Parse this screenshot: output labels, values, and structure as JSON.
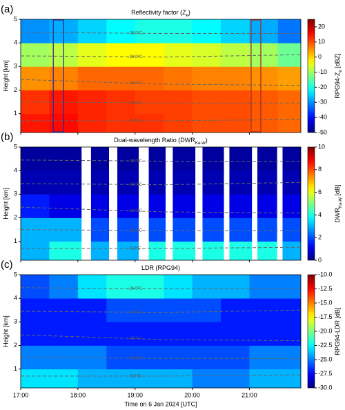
{
  "chart_data": [
    {
      "type": "heatmap",
      "panel_label": "(a)",
      "title": [
        "Reflectivity factor (Z",
        "e",
        ")"
      ],
      "ylabel": "Height [km]",
      "colorbar_label": [
        "RPG94-Z",
        "e",
        " [dBZ]"
      ],
      "colormap": "jet",
      "xlim": [
        17,
        21.9
      ],
      "ylim": [
        0.2,
        5
      ],
      "yticks": [
        1,
        2,
        3,
        4,
        5
      ],
      "zlim": [
        -50,
        25
      ],
      "zticks": [
        -50,
        -40,
        -30,
        -20,
        -10,
        0,
        10,
        20
      ],
      "x_edges": [
        17,
        17.5,
        18,
        18.5,
        19,
        19.5,
        20,
        20.5,
        21,
        21.5,
        21.9
      ],
      "y_edges": [
        0.2,
        1,
        2,
        3,
        4,
        5
      ],
      "z": [
        [
          14,
          15,
          13,
          12,
          12,
          11,
          10,
          10,
          9,
          8
        ],
        [
          12,
          14,
          13,
          12,
          11,
          11,
          10,
          10,
          9,
          8
        ],
        [
          5,
          6,
          8,
          8,
          8,
          7,
          6,
          6,
          5,
          4
        ],
        [
          -10,
          -8,
          -5,
          -3,
          -3,
          -5,
          -6,
          -8,
          -10,
          -14
        ],
        [
          -30,
          -28,
          -25,
          -22,
          -20,
          -20,
          -22,
          -25,
          -28,
          -32
        ]
      ],
      "isotherms": [
        {
          "label": "-25.0°C",
          "x": [
            17,
            19.5,
            21.9
          ],
          "y": [
            4.45,
            4.4,
            4.4
          ]
        },
        {
          "label": "-20.0°C",
          "x": [
            17,
            19.5,
            21.9
          ],
          "y": [
            3.45,
            3.4,
            3.5
          ]
        },
        {
          "label": "-15.0°C",
          "x": [
            17,
            19.5,
            21.9
          ],
          "y": [
            2.45,
            2.25,
            2.2
          ]
        },
        {
          "label": "-10.0°C",
          "x": [
            17,
            19.5,
            21.9
          ],
          "y": [
            1.5,
            1.45,
            1.45
          ]
        },
        {
          "label": "-5.0°C",
          "x": [
            17,
            19.5,
            21.9
          ],
          "y": [
            0.7,
            0.7,
            0.75
          ]
        }
      ],
      "boxes": [
        {
          "x": [
            17.57,
            17.75
          ],
          "color": "#2a2a9a"
        },
        {
          "x": [
            21.03,
            21.2
          ],
          "color": "#a02828"
        }
      ]
    },
    {
      "type": "heatmap",
      "panel_label": "(b)",
      "title": [
        "Dual-wavelength Ratio (DWR",
        "Ka-W",
        ")"
      ],
      "ylabel": "Height [km]",
      "colorbar_label": [
        "DWR",
        "Ka-W",
        " [dB]"
      ],
      "colormap": "jet",
      "xlim": [
        17,
        21.9
      ],
      "ylim": [
        0.2,
        5
      ],
      "yticks": [
        1,
        2,
        3,
        4,
        5
      ],
      "zlim": [
        0,
        10
      ],
      "zticks": [
        0,
        2,
        4,
        6,
        8,
        10
      ],
      "x_edges": [
        17,
        17.5,
        18.06,
        18.23,
        18.54,
        18.69,
        19.06,
        19.24,
        19.53,
        19.66,
        20.05,
        20.18,
        20.55,
        20.65,
        21.04,
        21.14,
        21.48,
        21.58,
        21.9
      ],
      "y_edges": [
        0.2,
        1,
        2,
        3,
        4,
        5
      ],
      "z": [
        [
          3,
          4,
          null,
          3,
          null,
          3,
          null,
          4,
          null,
          4,
          null,
          4,
          null,
          4,
          null,
          4,
          null,
          3
        ],
        [
          3,
          3,
          null,
          2,
          null,
          2,
          null,
          2,
          null,
          2,
          null,
          2,
          null,
          2,
          null,
          2,
          null,
          2
        ],
        [
          1.5,
          1,
          null,
          1,
          null,
          1,
          null,
          1,
          null,
          1,
          null,
          1,
          null,
          1,
          null,
          1,
          null,
          1
        ],
        [
          0.5,
          0.5,
          null,
          0.5,
          null,
          0.5,
          null,
          0.5,
          null,
          0.5,
          null,
          0.5,
          null,
          0.5,
          null,
          0.5,
          null,
          0.5
        ],
        [
          0.3,
          0.3,
          null,
          0.3,
          null,
          0.3,
          null,
          0.3,
          null,
          0.3,
          null,
          0.3,
          null,
          0.3,
          null,
          0.3,
          null,
          0.3
        ]
      ],
      "isotherms": [
        {
          "label": "-25.0°C",
          "x": [
            17,
            19.5,
            21.9
          ],
          "y": [
            4.45,
            4.4,
            4.4
          ]
        },
        {
          "label": "-20.0°C",
          "x": [
            17,
            19.5,
            21.9
          ],
          "y": [
            3.45,
            3.4,
            3.5
          ]
        },
        {
          "label": "-15.0°C",
          "x": [
            17,
            19.5,
            21.9
          ],
          "y": [
            2.45,
            2.25,
            2.2
          ]
        },
        {
          "label": "-10.0°C",
          "x": [
            17,
            19.5,
            21.9
          ],
          "y": [
            1.5,
            1.45,
            1.45
          ]
        },
        {
          "label": "-5.0°C",
          "x": [
            17,
            19.5,
            21.9
          ],
          "y": [
            0.7,
            0.7,
            0.75
          ]
        }
      ]
    },
    {
      "type": "heatmap",
      "panel_label": "(c)",
      "title": [
        "LDR (RPG94)"
      ],
      "ylabel": "Height [km]",
      "xlabel": "Time on 6 Jan 2024  [UTC]",
      "colorbar_label": [
        "RPG94-LDR [dB]"
      ],
      "colormap": "jet",
      "xlim": [
        17,
        21.9
      ],
      "ylim": [
        0.2,
        5
      ],
      "yticks": [
        1,
        2,
        3,
        4,
        5
      ],
      "xticks": [
        {
          "value": 17,
          "label": "17:00"
        },
        {
          "value": 18,
          "label": "18:00"
        },
        {
          "value": 19,
          "label": "19:00"
        },
        {
          "value": 20,
          "label": "20:00"
        },
        {
          "value": 21,
          "label": "21:00"
        }
      ],
      "zlim": [
        -30,
        -10
      ],
      "zticks": [
        {
          "value": -30,
          "label": "-30.0"
        },
        {
          "value": -27.5,
          "label": "-27.5"
        },
        {
          "value": -25,
          "label": "-25.0"
        },
        {
          "value": -22.5,
          "label": "-22.5"
        },
        {
          "value": -20,
          "label": "-20.0"
        },
        {
          "value": -17.5,
          "label": "-17.5"
        },
        {
          "value": -15,
          "label": "-15.0"
        },
        {
          "value": -12.5,
          "label": "-12.5"
        },
        {
          "value": -10,
          "label": "-10.0"
        }
      ],
      "x_edges": [
        17,
        17.5,
        18,
        18.5,
        19,
        19.5,
        20,
        20.5,
        21,
        21.5,
        21.9
      ],
      "y_edges": [
        0.2,
        1,
        2,
        3,
        4,
        5
      ],
      "z": [
        [
          -23,
          -23,
          -24,
          -24,
          -24,
          -24,
          -25,
          -25,
          -24,
          -24
        ],
        [
          -25,
          -25,
          -25,
          -26,
          -26,
          -26,
          -26,
          -26,
          -25,
          -25
        ],
        [
          -27,
          -27,
          -27,
          -27,
          -27,
          -27,
          -27,
          -27,
          -27,
          -27
        ],
        [
          -27,
          -27,
          -27,
          -26,
          -26,
          -26,
          -26,
          -27,
          -27,
          -27
        ],
        [
          -26,
          -25,
          -23,
          -22,
          -22,
          -23,
          -24,
          -24,
          -25,
          -25
        ]
      ],
      "isotherms": [
        {
          "label": "-25.0°C",
          "x": [
            17,
            19.5,
            21.9
          ],
          "y": [
            4.45,
            4.4,
            4.4
          ]
        },
        {
          "label": "-20.0°C",
          "x": [
            17,
            19.5,
            21.9
          ],
          "y": [
            3.45,
            3.4,
            3.5
          ]
        },
        {
          "label": "-15.0°C",
          "x": [
            17,
            19.5,
            21.9
          ],
          "y": [
            2.45,
            2.25,
            2.2
          ]
        },
        {
          "label": "-10.0°C",
          "x": [
            17,
            19.5,
            21.9
          ],
          "y": [
            1.5,
            1.45,
            1.45
          ]
        },
        {
          "label": "-5.0°C",
          "x": [
            17,
            19.5,
            21.9
          ],
          "y": [
            0.7,
            0.7,
            0.75
          ]
        }
      ]
    }
  ]
}
